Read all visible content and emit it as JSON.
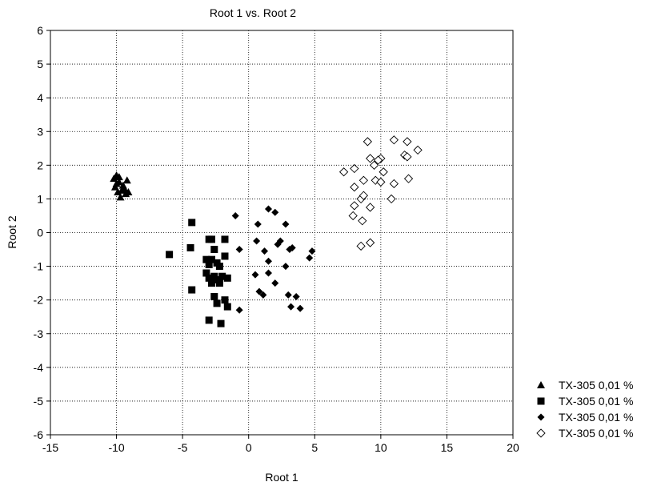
{
  "chart_data": {
    "type": "scatter",
    "title": "Root 1 vs. Root 2",
    "xlabel": "Root 1",
    "ylabel": "Root 2",
    "xlim": [
      -15,
      20
    ],
    "ylim": [
      -6,
      6
    ],
    "xticks": [
      -15,
      -10,
      -5,
      0,
      5,
      10,
      15,
      20
    ],
    "yticks": [
      -6,
      -5,
      -4,
      -3,
      -2,
      -1,
      0,
      1,
      2,
      3,
      4,
      5,
      6
    ],
    "grid": true,
    "grid_style": "dotted",
    "legend_position": "bottom-right, outside plot",
    "series": [
      {
        "name": "TX-305 0,01 %",
        "marker": "filled-triangle",
        "color": "#000000",
        "points": [
          [
            -10.2,
            1.6
          ],
          [
            -10.0,
            1.7
          ],
          [
            -9.8,
            1.5
          ],
          [
            -9.5,
            1.4
          ],
          [
            -9.2,
            1.55
          ],
          [
            -10.1,
            1.35
          ],
          [
            -9.9,
            1.2
          ],
          [
            -9.6,
            1.25
          ],
          [
            -9.3,
            1.15
          ],
          [
            -9.7,
            1.05
          ],
          [
            -10.0,
            1.45
          ],
          [
            -9.4,
            1.3
          ],
          [
            -9.8,
            1.65
          ],
          [
            -9.1,
            1.2
          ]
        ]
      },
      {
        "name": "TX-305 0,01 %",
        "marker": "filled-square",
        "color": "#000000",
        "points": [
          [
            -6.0,
            -0.65
          ],
          [
            -4.3,
            0.3
          ],
          [
            -4.4,
            -0.45
          ],
          [
            -4.3,
            -1.7
          ],
          [
            -3.0,
            -0.2
          ],
          [
            -2.8,
            -0.2
          ],
          [
            -1.8,
            -0.2
          ],
          [
            -2.6,
            -0.5
          ],
          [
            -3.2,
            -0.8
          ],
          [
            -3.0,
            -0.95
          ],
          [
            -2.8,
            -0.8
          ],
          [
            -2.4,
            -0.9
          ],
          [
            -2.2,
            -1.0
          ],
          [
            -1.8,
            -0.7
          ],
          [
            -3.2,
            -1.2
          ],
          [
            -3.0,
            -1.35
          ],
          [
            -2.8,
            -1.5
          ],
          [
            -2.6,
            -1.3
          ],
          [
            -2.4,
            -1.4
          ],
          [
            -2.2,
            -1.5
          ],
          [
            -2.0,
            -1.3
          ],
          [
            -1.6,
            -1.35
          ],
          [
            -2.6,
            -1.9
          ],
          [
            -2.4,
            -2.1
          ],
          [
            -1.8,
            -2.0
          ],
          [
            -1.6,
            -2.2
          ],
          [
            -3.0,
            -2.6
          ],
          [
            -2.1,
            -2.7
          ]
        ]
      },
      {
        "name": "TX-305 0,01 %",
        "marker": "filled-diamond",
        "color": "#000000",
        "points": [
          [
            -1.0,
            0.5
          ],
          [
            -0.7,
            -0.5
          ],
          [
            -0.7,
            -2.3
          ],
          [
            0.7,
            0.25
          ],
          [
            0.6,
            -0.25
          ],
          [
            1.5,
            0.7
          ],
          [
            2.0,
            0.6
          ],
          [
            2.8,
            0.25
          ],
          [
            1.2,
            -0.55
          ],
          [
            1.5,
            -0.85
          ],
          [
            2.2,
            -0.35
          ],
          [
            2.4,
            -0.25
          ],
          [
            3.1,
            -0.5
          ],
          [
            3.3,
            -0.45
          ],
          [
            2.8,
            -1.0
          ],
          [
            0.5,
            -1.25
          ],
          [
            1.5,
            -1.2
          ],
          [
            2.0,
            -1.5
          ],
          [
            0.8,
            -1.75
          ],
          [
            1.1,
            -1.85
          ],
          [
            3.0,
            -1.85
          ],
          [
            3.6,
            -1.9
          ],
          [
            3.2,
            -2.2
          ],
          [
            3.9,
            -2.25
          ],
          [
            4.6,
            -0.75
          ],
          [
            4.8,
            -0.55
          ]
        ]
      },
      {
        "name": "TX-305 0,01 %",
        "marker": "open-diamond",
        "color": "#000000",
        "points": [
          [
            7.2,
            1.8
          ],
          [
            8.0,
            1.9
          ],
          [
            8.7,
            1.55
          ],
          [
            9.0,
            2.7
          ],
          [
            9.2,
            2.2
          ],
          [
            9.5,
            2.0
          ],
          [
            10.0,
            2.2
          ],
          [
            9.8,
            2.15
          ],
          [
            9.6,
            1.55
          ],
          [
            10.0,
            1.5
          ],
          [
            10.2,
            1.8
          ],
          [
            8.0,
            1.35
          ],
          [
            8.5,
            1.0
          ],
          [
            8.7,
            1.1
          ],
          [
            8.0,
            0.8
          ],
          [
            7.9,
            0.5
          ],
          [
            8.6,
            0.35
          ],
          [
            9.2,
            0.75
          ],
          [
            8.5,
            -0.4
          ],
          [
            9.2,
            -0.3
          ],
          [
            11.0,
            2.75
          ],
          [
            12.0,
            2.7
          ],
          [
            12.8,
            2.45
          ],
          [
            11.8,
            2.3
          ],
          [
            12.0,
            2.25
          ],
          [
            11.0,
            1.45
          ],
          [
            12.1,
            1.6
          ],
          [
            10.8,
            1.0
          ]
        ]
      }
    ]
  }
}
